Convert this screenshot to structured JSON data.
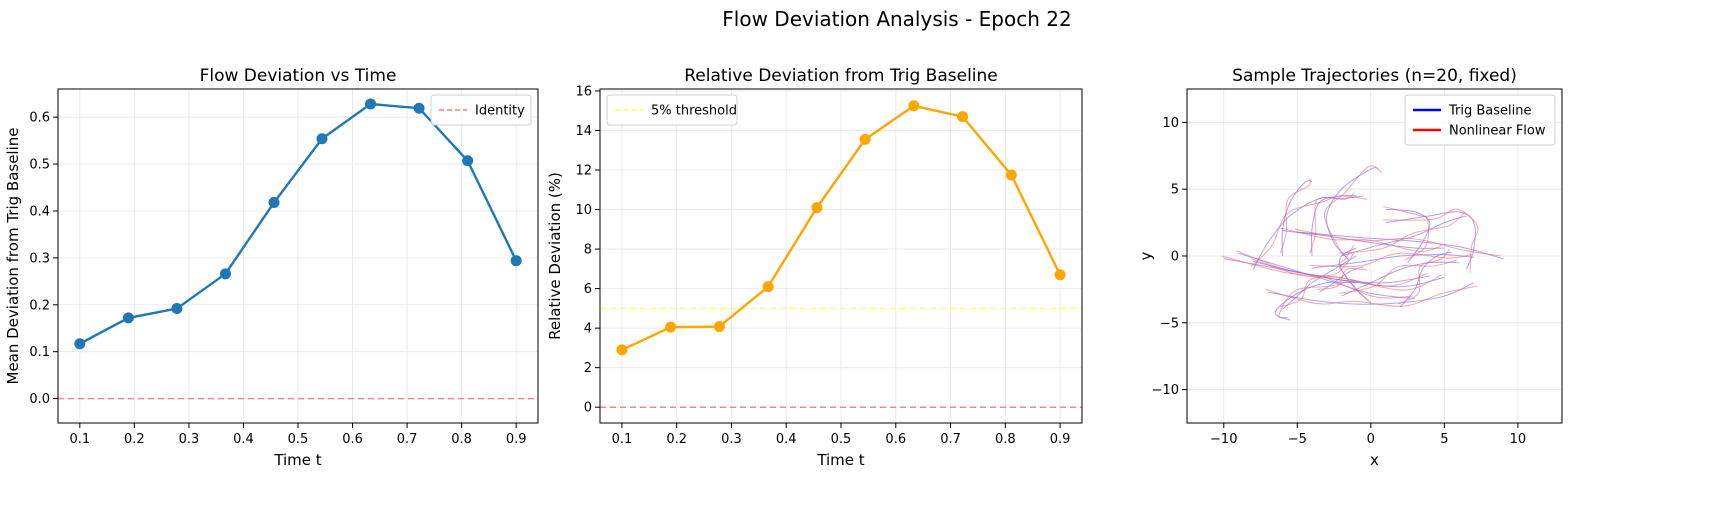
{
  "suptitle": "Flow Deviation Analysis - Epoch 22",
  "chart_data": [
    {
      "type": "line",
      "title": "Flow Deviation vs Time",
      "xlabel": "Time t",
      "ylabel": "Mean Deviation from Trig Baseline",
      "xlim": [
        0.06,
        0.94
      ],
      "ylim": [
        -0.052,
        0.66
      ],
      "xticks": [
        0.1,
        0.2,
        0.3,
        0.4,
        0.5,
        0.6,
        0.7,
        0.8,
        0.9
      ],
      "xtick_labels": [
        "0.1",
        "0.2",
        "0.3",
        "0.4",
        "0.5",
        "0.6",
        "0.7",
        "0.8",
        "0.9"
      ],
      "yticks": [
        0.0,
        0.1,
        0.2,
        0.3,
        0.4,
        0.5,
        0.6
      ],
      "ytick_labels": [
        "0.0",
        "0.1",
        "0.2",
        "0.3",
        "0.4",
        "0.5",
        "0.6"
      ],
      "grid": true,
      "legend": {
        "placement": "top-right",
        "entries": [
          {
            "label": "Identity",
            "color": "#f08080",
            "style": "dashed"
          }
        ]
      },
      "series": [
        {
          "color": "#1f77b4",
          "marker": "circle",
          "x": [
            0.1,
            0.189,
            0.278,
            0.367,
            0.456,
            0.544,
            0.633,
            0.722,
            0.811,
            0.9
          ],
          "y": [
            0.117,
            0.172,
            0.192,
            0.266,
            0.418,
            0.554,
            0.628,
            0.619,
            0.507,
            0.294
          ]
        }
      ],
      "hlines": [
        {
          "y": 0.0,
          "color": "#f08080",
          "style": "dashed"
        }
      ]
    },
    {
      "type": "line",
      "title": "Relative Deviation from Trig Baseline",
      "xlabel": "Time t",
      "ylabel": "Relative Deviation (%)",
      "xlim": [
        0.06,
        0.94
      ],
      "ylim": [
        -0.8,
        16.1
      ],
      "xticks": [
        0.1,
        0.2,
        0.3,
        0.4,
        0.5,
        0.6,
        0.7,
        0.8,
        0.9
      ],
      "xtick_labels": [
        "0.1",
        "0.2",
        "0.3",
        "0.4",
        "0.5",
        "0.6",
        "0.7",
        "0.8",
        "0.9"
      ],
      "yticks": [
        0,
        2,
        4,
        6,
        8,
        10,
        12,
        14,
        16
      ],
      "ytick_labels": [
        "0",
        "2",
        "4",
        "6",
        "8",
        "10",
        "12",
        "14",
        "16"
      ],
      "grid": true,
      "legend": {
        "placement": "top-left",
        "entries": [
          {
            "label": "5% threshold",
            "color": "#ffff66",
            "style": "dashed"
          }
        ]
      },
      "series": [
        {
          "color": "#ffa500",
          "marker": "circle",
          "x": [
            0.1,
            0.189,
            0.278,
            0.367,
            0.456,
            0.544,
            0.633,
            0.722,
            0.811,
            0.9
          ],
          "y": [
            2.9,
            4.05,
            4.08,
            6.1,
            10.1,
            13.55,
            15.25,
            14.7,
            11.75,
            6.7
          ]
        }
      ],
      "hlines": [
        {
          "y": 5.0,
          "color": "#ffff66",
          "style": "dashed"
        },
        {
          "y": 0.0,
          "color": "#f08080",
          "style": "dashed"
        }
      ]
    },
    {
      "type": "line",
      "title": "Sample Trajectories (n=20, fixed)",
      "xlabel": "x",
      "ylabel": "y",
      "xlim": [
        -12.5,
        13
      ],
      "ylim": [
        -12.5,
        12.5
      ],
      "xticks": [
        -10,
        -5,
        0,
        5,
        10
      ],
      "xtick_labels": [
        "−10",
        "−5",
        "0",
        "5",
        "10"
      ],
      "yticks": [
        -10,
        -5,
        0,
        5,
        10
      ],
      "ytick_labels": [
        "−10",
        "−5",
        "0",
        "5",
        "10"
      ],
      "grid": true,
      "legend": {
        "placement": "top-right",
        "entries": [
          {
            "label": "Trig Baseline",
            "color": "#0000ff",
            "style": "solid"
          },
          {
            "label": "Nonlinear Flow",
            "color": "#ff0000",
            "style": "solid"
          }
        ]
      },
      "colors": {
        "trig": "#6666ff",
        "nonlinear": "#ff6666",
        "overlap": "#b05ab0"
      },
      "trajectories": [
        [
          [
            -10,
            -0.2
          ],
          [
            -6,
            -1
          ],
          [
            -2,
            -1.8
          ],
          [
            2,
            -2.3
          ],
          [
            5,
            -1.6
          ]
        ],
        [
          [
            -9,
            0.2
          ],
          [
            -6,
            -0.8
          ],
          [
            -3,
            -1.8
          ],
          [
            0,
            -2.8
          ],
          [
            3,
            -3.2
          ]
        ],
        [
          [
            -8,
            -0.4
          ],
          [
            -5,
            -1.2
          ],
          [
            -2,
            -1.8
          ],
          [
            1,
            -2
          ],
          [
            4,
            -1.5
          ]
        ],
        [
          [
            -7,
            -2.7
          ],
          [
            -4,
            -3.3
          ],
          [
            -1,
            -3.6
          ],
          [
            2,
            -3.5
          ],
          [
            5,
            -3
          ],
          [
            7,
            -2
          ]
        ],
        [
          [
            -6,
            1.9
          ],
          [
            -3,
            1.5
          ],
          [
            0,
            1
          ],
          [
            3,
            0.6
          ],
          [
            5,
            0.6
          ]
        ],
        [
          [
            -5,
            1.8
          ],
          [
            -1,
            1.4
          ],
          [
            3,
            1.1
          ],
          [
            6,
            0.7
          ],
          [
            9,
            -0.2
          ]
        ],
        [
          [
            -4,
            -0.9
          ],
          [
            -1,
            -0.5
          ],
          [
            2,
            0
          ],
          [
            5,
            0.1
          ],
          [
            7,
            -0.1
          ]
        ],
        [
          [
            -2,
            0
          ],
          [
            0.5,
            0.8
          ],
          [
            3,
            1.5
          ],
          [
            5,
            2.5
          ],
          [
            6.5,
            3
          ]
        ],
        [
          [
            -2,
            -3
          ],
          [
            0,
            -2
          ],
          [
            2,
            -1
          ],
          [
            4,
            -0.5
          ],
          [
            6,
            -0.5
          ]
        ],
        [
          [
            -6,
            -4
          ],
          [
            -5,
            -3
          ],
          [
            -4,
            -2
          ],
          [
            -2.5,
            -1
          ],
          [
            -1,
            0
          ]
        ],
        [
          [
            -1.5,
            -0.3
          ],
          [
            -2.5,
            1
          ],
          [
            -3,
            3
          ],
          [
            -2,
            5
          ],
          [
            0,
            6.5
          ],
          [
            0.5,
            6.5
          ]
        ],
        [
          [
            -4,
            0
          ],
          [
            -4,
            2
          ],
          [
            -3.5,
            4
          ],
          [
            -2,
            4.5
          ],
          [
            -1,
            4.5
          ]
        ],
        [
          [
            -6,
            0
          ],
          [
            -6,
            2
          ],
          [
            -5.5,
            4
          ],
          [
            -4.5,
            5.5
          ],
          [
            -4,
            5.6
          ]
        ],
        [
          [
            -8,
            -1
          ],
          [
            -7,
            1
          ],
          [
            -5.5,
            3
          ],
          [
            -3.5,
            4.3
          ],
          [
            -2,
            4.3
          ],
          [
            -0.5,
            4.5
          ]
        ],
        [
          [
            -1,
            -2
          ],
          [
            -3,
            -2
          ],
          [
            -5,
            -2.8
          ],
          [
            -6.5,
            -4.2
          ],
          [
            -5.5,
            -4.8
          ]
        ],
        [
          [
            0,
            -3.5
          ],
          [
            -1,
            -2.5
          ],
          [
            -2,
            -1
          ],
          [
            -2,
            0
          ],
          [
            -1,
            0.6
          ]
        ],
        [
          [
            1,
            2.5
          ],
          [
            4,
            3
          ],
          [
            6,
            3.3
          ],
          [
            7,
            2.5
          ],
          [
            7,
            0.5
          ],
          [
            6.5,
            -1
          ]
        ],
        [
          [
            2.5,
            -0.5
          ],
          [
            3.5,
            1
          ],
          [
            4,
            2.5
          ],
          [
            3,
            3.3
          ],
          [
            1,
            3.5
          ]
        ],
        [
          [
            -3.5,
            -2.7
          ],
          [
            -2.5,
            -2
          ],
          [
            -1.5,
            -1.2
          ],
          [
            -0.5,
            -0.8
          ]
        ],
        [
          [
            2,
            -3.8
          ],
          [
            3,
            -2.5
          ],
          [
            3.5,
            -1
          ],
          [
            4.5,
            0
          ],
          [
            5.5,
            0.3
          ]
        ]
      ]
    }
  ]
}
